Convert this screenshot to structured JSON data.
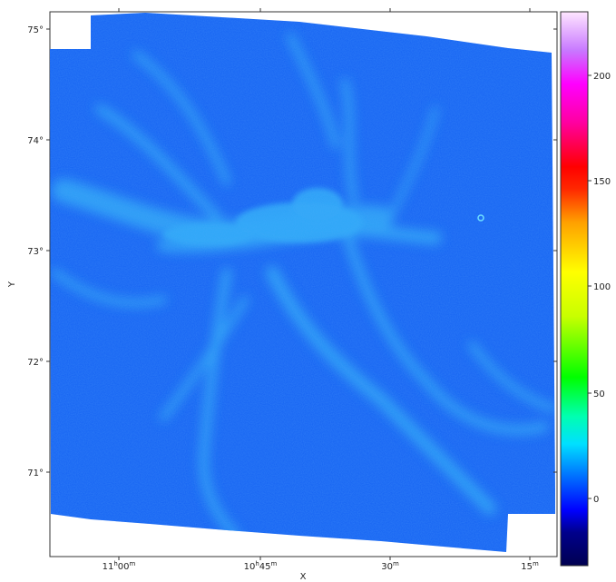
{
  "image": {
    "xlabel": "X",
    "ylabel": "Y",
    "x_ticks": [
      {
        "label": "11h00m",
        "main": "11",
        "sup1": "h",
        "mid": "00",
        "sup2": "m"
      },
      {
        "label": "10h45m",
        "main": "10",
        "sup1": "h",
        "mid": "45",
        "sup2": "m"
      },
      {
        "label": "30m",
        "main": "30",
        "sup1": "m",
        "mid": "",
        "sup2": ""
      },
      {
        "label": "15m",
        "main": "15",
        "sup1": "m",
        "mid": "",
        "sup2": ""
      }
    ],
    "y_ticks": [
      "75°",
      "74°",
      "73°",
      "72°",
      "71°"
    ]
  },
  "colorbar": {
    "ticks": [
      "200",
      "150",
      "100",
      "50",
      "0"
    ],
    "colors": [
      "#000050",
      "#0000c8",
      "#0050ff",
      "#00c8ff",
      "#00ffa0",
      "#00ff00",
      "#a0ff00",
      "#ffff00",
      "#ffa000",
      "#ff2800",
      "#ff0000",
      "#ff00a0",
      "#ff00ff",
      "#c878ff",
      "#ffe6ff"
    ]
  },
  "map_colors": {
    "background": "#1562f2",
    "filament": "#2ea8f6"
  }
}
